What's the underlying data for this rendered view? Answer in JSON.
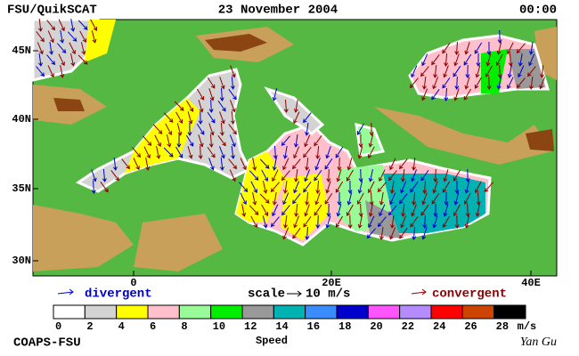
{
  "header": {
    "left": "FSU/QuikSCAT",
    "center": "23 November 2004",
    "right": "00:00"
  },
  "axes": {
    "lat_labels": [
      "45N",
      "40N",
      "35N",
      "30N"
    ],
    "lon_labels": [
      "0",
      "20E",
      "40E"
    ]
  },
  "legend": {
    "divergent": "divergent",
    "scale_label": "scale",
    "scale_value": "10 m/s",
    "convergent": "convergent"
  },
  "colorbar": {
    "ticks": [
      0,
      2,
      4,
      6,
      8,
      10,
      12,
      14,
      16,
      18,
      20,
      22,
      24,
      26,
      28
    ],
    "colors": [
      "#ffffff",
      "#d3d3d3",
      "#ffff00",
      "#ffc0cb",
      "#98fb98",
      "#00ee00",
      "#999999",
      "#00b2b2",
      "#3a8cff",
      "#0000cc",
      "#ff55ff",
      "#b48cff",
      "#ff0000",
      "#cc4400",
      "#000000"
    ],
    "unit": "m/s",
    "title": "Speed"
  },
  "footer": {
    "left": "COAPS-FSU",
    "right": "Yan Gu"
  }
}
